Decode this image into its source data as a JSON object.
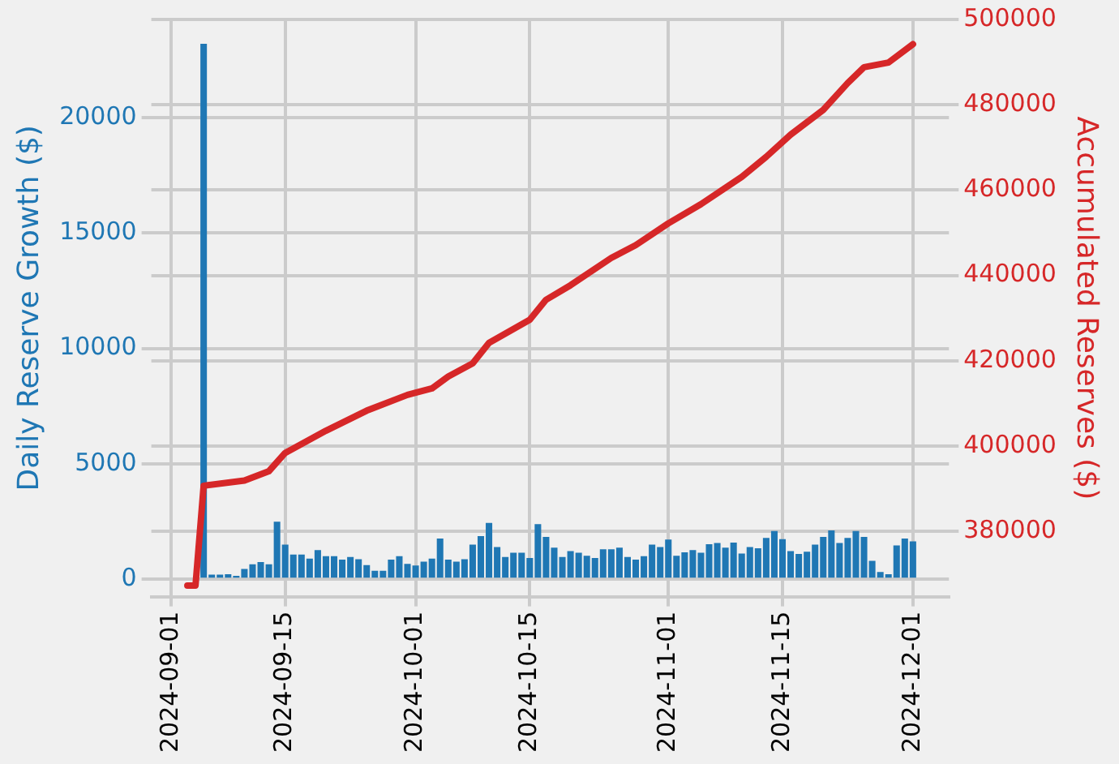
{
  "chart_data": {
    "type": "bar",
    "ylabel": "Daily Reserve Growth ($)",
    "y2label": "Accumulated Reserves ($)",
    "x": [
      "2024-09-05",
      "2024-09-06",
      "2024-09-07",
      "2024-09-08",
      "2024-09-09",
      "2024-09-10",
      "2024-09-11",
      "2024-09-12",
      "2024-09-13",
      "2024-09-14",
      "2024-09-15",
      "2024-09-16",
      "2024-09-17",
      "2024-09-18",
      "2024-09-19",
      "2024-09-20",
      "2024-09-21",
      "2024-09-22",
      "2024-09-23",
      "2024-09-24",
      "2024-09-25",
      "2024-09-26",
      "2024-09-27",
      "2024-09-28",
      "2024-09-29",
      "2024-09-30",
      "2024-10-01",
      "2024-10-02",
      "2024-10-03",
      "2024-10-04",
      "2024-10-05",
      "2024-10-06",
      "2024-10-07",
      "2024-10-08",
      "2024-10-09",
      "2024-10-10",
      "2024-10-11",
      "2024-10-12",
      "2024-10-13",
      "2024-10-14",
      "2024-10-15",
      "2024-10-16",
      "2024-10-17",
      "2024-10-18",
      "2024-10-19",
      "2024-10-20",
      "2024-10-21",
      "2024-10-22",
      "2024-10-23",
      "2024-10-24",
      "2024-10-25",
      "2024-10-26",
      "2024-10-27",
      "2024-10-28",
      "2024-10-29",
      "2024-10-30",
      "2024-10-31",
      "2024-11-01",
      "2024-11-02",
      "2024-11-03",
      "2024-11-04",
      "2024-11-05",
      "2024-11-06",
      "2024-11-07",
      "2024-11-08",
      "2024-11-09",
      "2024-11-10",
      "2024-11-11",
      "2024-11-12",
      "2024-11-13",
      "2024-11-14",
      "2024-11-15",
      "2024-11-16",
      "2024-11-17",
      "2024-11-18",
      "2024-11-19",
      "2024-11-20",
      "2024-11-21",
      "2024-11-22",
      "2024-11-23",
      "2024-11-24",
      "2024-11-25",
      "2024-11-26",
      "2024-11-27",
      "2024-11-28",
      "2024-11-29",
      "2024-11-30",
      "2024-12-01"
    ],
    "series": [
      {
        "color": "#1f77b4",
        "values": [
          23200,
          200,
          200,
          220,
          150,
          450,
          650,
          750,
          650,
          2500,
          1500,
          1070,
          1070,
          900,
          1270,
          1000,
          1000,
          850,
          970,
          870,
          620,
          370,
          370,
          850,
          1000,
          670,
          600,
          770,
          900,
          1770,
          850,
          770,
          870,
          1500,
          1870,
          2440,
          1400,
          970,
          1150,
          1150,
          920,
          2390,
          1840,
          1370,
          970,
          1220,
          1150,
          1020,
          920,
          1300,
          1300,
          1370,
          970,
          850,
          1000,
          1500,
          1400,
          1720,
          1020,
          1170,
          1270,
          1150,
          1520,
          1570,
          1370,
          1590,
          1120,
          1400,
          1350,
          1790,
          2090,
          1740,
          1220,
          1100,
          1200,
          1500,
          1840,
          2120,
          1570,
          1790,
          2090,
          1840,
          800,
          320,
          220,
          1470,
          1770,
          1640
        ]
      },
      {
        "type": "line",
        "axis": "y2",
        "color": "#d62728",
        "x": [
          "2024-09-03",
          "2024-09-04",
          "2024-09-05",
          "2024-09-10",
          "2024-09-13",
          "2024-09-15",
          "2024-09-20",
          "2024-09-25",
          "2024-09-30",
          "2024-10-03",
          "2024-10-05",
          "2024-10-08",
          "2024-10-10",
          "2024-10-15",
          "2024-10-17",
          "2024-10-20",
          "2024-10-25",
          "2024-10-28",
          "2024-11-01",
          "2024-11-05",
          "2024-11-10",
          "2024-11-13",
          "2024-11-16",
          "2024-11-20",
          "2024-11-23",
          "2024-11-25",
          "2024-11-28",
          "2024-12-01"
        ],
        "values": [
          367300,
          367300,
          390700,
          391900,
          394100,
          398400,
          403600,
          408300,
          412000,
          413500,
          416300,
          419400,
          424200,
          429600,
          434300,
          437700,
          444100,
          447100,
          452200,
          456700,
          463100,
          467800,
          473000,
          478800,
          485100,
          488800,
          489900,
          494200
        ]
      }
    ],
    "xlim": [
      "2024-08-29T14:00",
      "2024-12-05T10:00"
    ],
    "xticks": [
      "2024-09-01",
      "2024-09-15",
      "2024-10-01",
      "2024-10-15",
      "2024-11-01",
      "2024-11-15",
      "2024-12-01"
    ],
    "ylim": [
      -750,
      24250
    ],
    "yticks": [
      0,
      5000,
      10000,
      15000,
      20000
    ],
    "y2lim": [
      364700,
      500000
    ],
    "y2ticks": [
      380000,
      400000,
      420000,
      440000,
      460000,
      480000,
      500000
    ],
    "grid": true,
    "legend": false,
    "marker": "none",
    "line_style": "solid"
  }
}
